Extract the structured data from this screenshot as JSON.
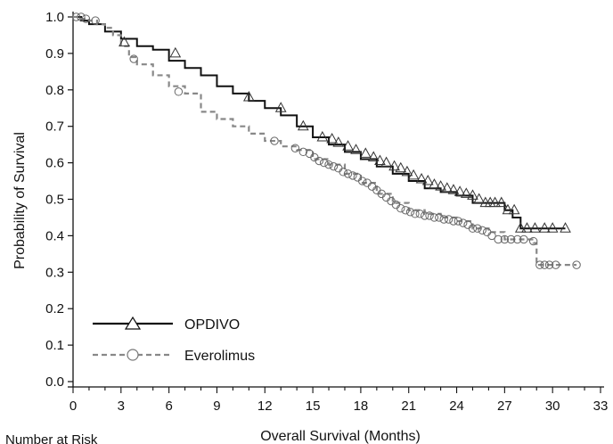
{
  "chart_data": {
    "type": "line",
    "subtype": "kaplan-meier",
    "xlabel": "Overall Survival (Months)",
    "ylabel": "Probability of Survival",
    "xlim": [
      0,
      33
    ],
    "ylim": [
      0,
      1.0
    ],
    "xticks": [
      "0",
      "3",
      "6",
      "9",
      "12",
      "15",
      "18",
      "21",
      "24",
      "27",
      "30",
      "33"
    ],
    "yticks": [
      "0.0",
      "0.1",
      "0.2",
      "0.3",
      "0.4",
      "0.5",
      "0.6",
      "0.7",
      "0.8",
      "0.9",
      "1.0"
    ],
    "grid": false,
    "legend_position": "bottom-left",
    "footer_text": "Number at Risk",
    "series": [
      {
        "name": "OPDIVO",
        "color": "#111111",
        "line_style": "solid",
        "marker": "triangle",
        "x": [
          0,
          0.5,
          1,
          2,
          3,
          4,
          5,
          6,
          7,
          8,
          9,
          10,
          11,
          12,
          13,
          14,
          15,
          16,
          17,
          18,
          19,
          20,
          21,
          22,
          23,
          24,
          25,
          26,
          27,
          27.5,
          28,
          29,
          30,
          30.8
        ],
        "y": [
          1.0,
          0.99,
          0.98,
          0.96,
          0.94,
          0.92,
          0.91,
          0.88,
          0.86,
          0.84,
          0.81,
          0.79,
          0.77,
          0.75,
          0.73,
          0.7,
          0.67,
          0.65,
          0.63,
          0.61,
          0.59,
          0.57,
          0.55,
          0.53,
          0.52,
          0.51,
          0.49,
          0.49,
          0.47,
          0.45,
          0.42,
          0.42,
          0.42,
          0.42
        ],
        "censor_x": [
          3.2,
          6.4,
          11,
          13,
          14.4,
          15.6,
          16.2,
          16.6,
          17.2,
          17.7,
          18.3,
          18.8,
          19.2,
          19.6,
          20.1,
          20.5,
          20.9,
          21.3,
          21.8,
          22.2,
          22.6,
          23,
          23.4,
          23.8,
          24.2,
          24.6,
          25,
          25.4,
          25.8,
          26.1,
          26.4,
          26.8,
          27.2,
          27.6,
          28,
          28.4,
          28.9,
          29.5,
          30,
          30.8
        ],
        "censor_y": [
          0.93,
          0.9,
          0.78,
          0.75,
          0.7,
          0.67,
          0.665,
          0.655,
          0.645,
          0.635,
          0.625,
          0.615,
          0.605,
          0.6,
          0.59,
          0.585,
          0.575,
          0.565,
          0.555,
          0.55,
          0.54,
          0.535,
          0.53,
          0.525,
          0.52,
          0.515,
          0.51,
          0.5,
          0.49,
          0.49,
          0.49,
          0.49,
          0.47,
          0.47,
          0.42,
          0.42,
          0.42,
          0.42,
          0.42,
          0.42
        ]
      },
      {
        "name": "Everolimus",
        "color": "#888888",
        "line_style": "dashed",
        "marker": "circle",
        "x": [
          0,
          0.5,
          1,
          1.5,
          2,
          2.5,
          3,
          3.5,
          4,
          5,
          6,
          7,
          8,
          9,
          10,
          11,
          12,
          13,
          14,
          15,
          16,
          17,
          18,
          19,
          20,
          21,
          22,
          23,
          24,
          25,
          26,
          27,
          28,
          28.8,
          29,
          30,
          31.5
        ],
        "y": [
          1.0,
          0.995,
          0.99,
          0.98,
          0.97,
          0.95,
          0.92,
          0.89,
          0.87,
          0.84,
          0.81,
          0.79,
          0.74,
          0.72,
          0.7,
          0.68,
          0.66,
          0.645,
          0.635,
          0.61,
          0.595,
          0.57,
          0.545,
          0.515,
          0.49,
          0.47,
          0.46,
          0.45,
          0.44,
          0.42,
          0.41,
          0.39,
          0.39,
          0.38,
          0.32,
          0.32,
          0.32
        ],
        "censor_x": [
          0.2,
          0.5,
          0.8,
          1.4,
          3.8,
          6.6,
          12.6,
          13.9,
          14.4,
          14.8,
          15.1,
          15.4,
          15.7,
          16,
          16.3,
          16.6,
          16.9,
          17.2,
          17.5,
          17.8,
          18.1,
          18.4,
          18.7,
          19,
          19.3,
          19.6,
          19.9,
          20.2,
          20.5,
          20.8,
          21.1,
          21.4,
          21.7,
          22,
          22.3,
          22.6,
          22.9,
          23.2,
          23.5,
          23.8,
          24.1,
          24.4,
          24.7,
          25,
          25.3,
          25.6,
          25.9,
          26.2,
          26.6,
          27,
          27.4,
          27.8,
          28.2,
          28.8,
          29.2,
          29.5,
          29.8,
          30.2,
          31.5
        ],
        "censor_y": [
          1.0,
          1.0,
          0.995,
          0.99,
          0.885,
          0.795,
          0.66,
          0.64,
          0.63,
          0.625,
          0.615,
          0.605,
          0.6,
          0.595,
          0.59,
          0.585,
          0.575,
          0.57,
          0.565,
          0.56,
          0.55,
          0.545,
          0.535,
          0.525,
          0.515,
          0.505,
          0.495,
          0.485,
          0.475,
          0.47,
          0.465,
          0.46,
          0.46,
          0.455,
          0.455,
          0.45,
          0.45,
          0.445,
          0.445,
          0.44,
          0.44,
          0.435,
          0.43,
          0.42,
          0.42,
          0.415,
          0.41,
          0.4,
          0.39,
          0.39,
          0.39,
          0.39,
          0.39,
          0.385,
          0.32,
          0.32,
          0.32,
          0.32,
          0.32
        ]
      }
    ]
  }
}
